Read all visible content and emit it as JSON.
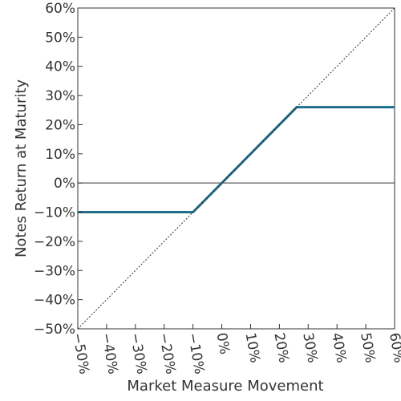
{
  "chart_data": {
    "type": "line",
    "xlabel": "Market Measure Movement",
    "ylabel": "Notes Return at Maturity",
    "xlim": [
      -50,
      60
    ],
    "ylim": [
      -50,
      60
    ],
    "x_ticks": [
      -50,
      -40,
      -30,
      -20,
      -10,
      0,
      10,
      20,
      30,
      40,
      50,
      60
    ],
    "y_ticks": [
      60,
      50,
      40,
      30,
      20,
      10,
      0,
      -10,
      -20,
      -30,
      -40,
      -50
    ],
    "x_tick_labels": [
      "-50%",
      "-40%",
      "-30%",
      "-20%",
      "-10%",
      "0%",
      "10%",
      "20%",
      "30%",
      "40%",
      "50%",
      "60%"
    ],
    "y_tick_labels": [
      "60%",
      "50%",
      "40%",
      "30%",
      "20%",
      "10%",
      "0%",
      "-10%",
      "-20%",
      "-30%",
      "-40%",
      "-50%"
    ],
    "grid": false,
    "series": [
      {
        "style": "solid",
        "color": "#1f6e8c",
        "x": [
          -50,
          -10,
          26,
          60
        ],
        "y": [
          -10,
          -10,
          26,
          26
        ]
      },
      {
        "style": "dotted",
        "color": "#333333",
        "x": [
          -50,
          60
        ],
        "y": [
          -50,
          60
        ]
      }
    ],
    "reference_lines": [
      {
        "axis": "y",
        "value": 0,
        "color": "#333333"
      }
    ]
  }
}
